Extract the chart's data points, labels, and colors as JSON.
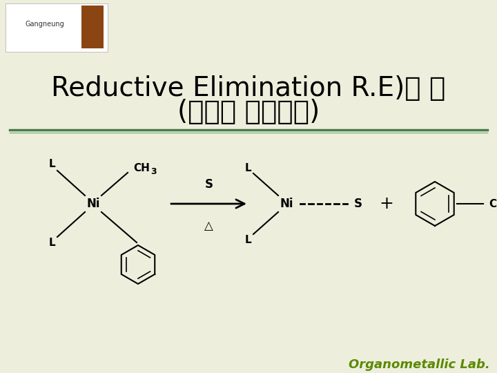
{
  "bg_color": "#eeeedd",
  "title_line1": "Reductive Elimination R.E)의 예",
  "title_line2": "(환원적 이탈반응)",
  "title_fontsize": 28,
  "title_color": "#000000",
  "sep_color1": "#4a7a4a",
  "sep_color2": "#7ab87a",
  "footer_text": "Organometallic Lab.",
  "footer_color": "#5a8a00",
  "footer_fontsize": 13,
  "chem_label_fontsize": 11,
  "chem_sub_fontsize": 9,
  "ni_fontsize": 12
}
